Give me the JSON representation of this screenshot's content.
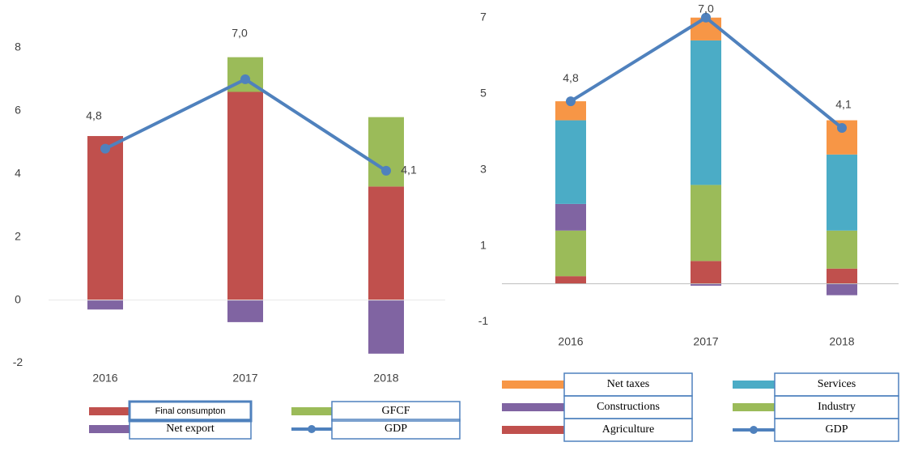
{
  "chart_data": [
    {
      "type": "bar",
      "categories": [
        "2016",
        "2017",
        "2018"
      ],
      "ylim": [
        -2.5,
        9
      ],
      "yticks": [
        -2,
        0,
        2,
        4,
        6,
        8
      ],
      "series": [
        {
          "name": "Final consumpton",
          "color": "#c0504d",
          "values": [
            5.2,
            6.6,
            3.6
          ]
        },
        {
          "name": "GFCF",
          "color": "#9bbb59",
          "values": [
            0,
            1.1,
            2.2
          ]
        },
        {
          "name": "Net export",
          "color": "#8064a2",
          "values": [
            -0.3,
            -0.7,
            -1.7
          ]
        },
        {
          "name": "GDP",
          "type": "line",
          "color": "#4f81bd",
          "values": [
            4.8,
            7.0,
            4.1
          ],
          "value_labels": [
            "4,8",
            "7,0",
            "4,1"
          ]
        }
      ]
    },
    {
      "type": "bar",
      "categories": [
        "2016",
        "2017",
        "2018"
      ],
      "ylim": [
        -1.5,
        7.25
      ],
      "yticks": [
        -1,
        1,
        3,
        5,
        7
      ],
      "series": [
        {
          "name": "Agriculture",
          "color": "#c0504d",
          "values": [
            0.2,
            0.6,
            0.4
          ]
        },
        {
          "name": "Industry",
          "color": "#9bbb59",
          "values": [
            1.2,
            2.0,
            1.0
          ]
        },
        {
          "name": "Constructions",
          "color": "#8064a2",
          "values": [
            0.7,
            -0.05,
            -0.3
          ]
        },
        {
          "name": "Services",
          "color": "#4bacc6",
          "values": [
            2.2,
            3.8,
            2.0
          ]
        },
        {
          "name": "Net taxes",
          "color": "#f79646",
          "values": [
            0.5,
            0.6,
            0.9
          ]
        },
        {
          "name": "GDP",
          "type": "line",
          "color": "#4f81bd",
          "values": [
            4.8,
            7.0,
            4.1
          ],
          "value_labels": [
            "4,8",
            "7,0",
            "4,1"
          ]
        }
      ]
    }
  ]
}
